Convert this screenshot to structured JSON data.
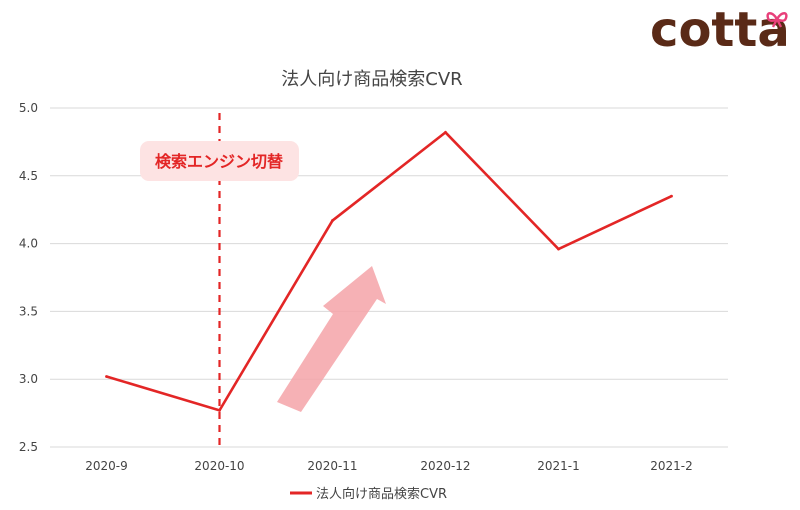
{
  "brand": {
    "logo_text": "cotta",
    "logo_color": "#5a2a17",
    "accent_color": "#e8407a"
  },
  "chart_data": {
    "type": "line",
    "title": "法人向け商品検索CVR",
    "xlabel": "",
    "ylabel": "",
    "categories": [
      "2020-9",
      "2020-10",
      "2020-11",
      "2020-12",
      "2021-1",
      "2021-2"
    ],
    "series": [
      {
        "name": "法人向け商品検索CVR",
        "values": [
          3.02,
          2.77,
          4.17,
          4.82,
          3.96,
          4.35
        ],
        "color": "#e32626"
      }
    ],
    "ylim": [
      2.5,
      5.0
    ],
    "yticks": [
      "2.5",
      "3.0",
      "3.5",
      "4.0",
      "4.5",
      "5.0"
    ],
    "grid": true,
    "legend_position": "bottom",
    "annotations": [
      {
        "type": "vertical-dashed-line",
        "at_category": "2020-10",
        "color": "#e32626"
      },
      {
        "type": "label",
        "text": "検索エンジン切替",
        "near_category": "2020-10",
        "text_color": "#e32626",
        "background": "#fde3e3"
      },
      {
        "type": "up-arrow",
        "from_category": "2020-11",
        "meaning": "increase",
        "color": "#f4a3a8"
      }
    ]
  }
}
